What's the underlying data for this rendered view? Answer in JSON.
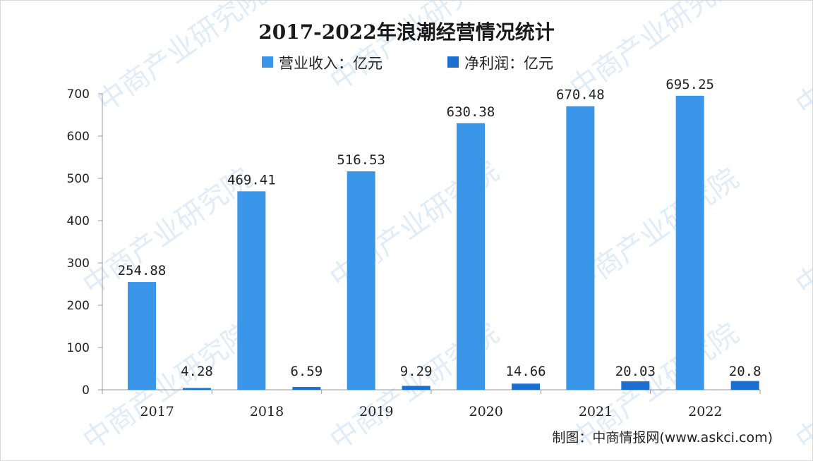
{
  "chart_data": {
    "type": "bar",
    "title": "2017-2022年浪潮经营情况统计",
    "categories": [
      "2017",
      "2018",
      "2019",
      "2020",
      "2021",
      "2022"
    ],
    "series": [
      {
        "name": "营业收入：亿元",
        "color": "#3a96e8",
        "values": [
          254.88,
          469.41,
          516.53,
          630.38,
          670.48,
          695.25
        ],
        "labels": [
          "254.88",
          "469.41",
          "516.53",
          "630.38",
          "670.48",
          "695.25"
        ]
      },
      {
        "name": "净利润：亿元",
        "color": "#1a6fd1",
        "values": [
          4.28,
          6.59,
          9.29,
          14.66,
          20.03,
          20.8
        ],
        "labels": [
          "4.28",
          "6.59",
          "9.29",
          "14.66",
          "20.03",
          "20.8"
        ]
      }
    ],
    "ylim": [
      0,
      700
    ],
    "yticks": [
      0,
      100,
      200,
      300,
      400,
      500,
      600,
      700
    ],
    "grid": false,
    "legend_position": "top-center"
  },
  "credit": "制图：中商情报网(www.askci.com)",
  "watermark": "中商产业研究院"
}
